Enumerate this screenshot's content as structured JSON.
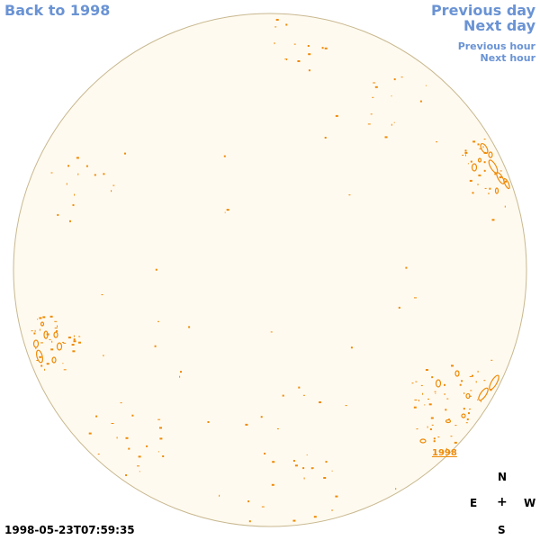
{
  "nav": {
    "back_label": "Back to 1998",
    "prev_day_label": "Previous day",
    "next_day_label": "Next day",
    "prev_hour_label": "Previous hour",
    "next_hour_label": "Next hour"
  },
  "image": {
    "timestamp": "1998-05-23T07:59:35",
    "year_label": "1998"
  },
  "compass": {
    "north": "N",
    "east": "E",
    "center": "+",
    "west": "W",
    "south": "S"
  },
  "colors": {
    "link": "#6a93d4",
    "disk_fill": "#fffaef",
    "disk_edge": "#c8b890",
    "contour": "#ef8a06"
  }
}
